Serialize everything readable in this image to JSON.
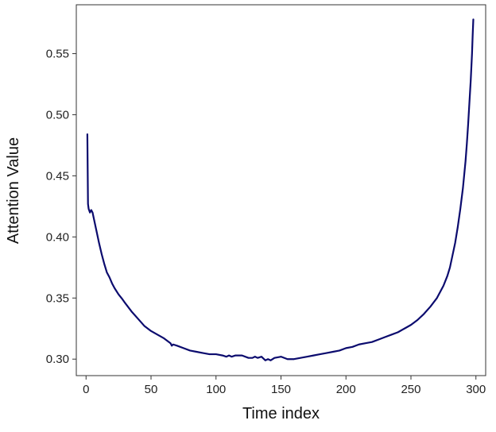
{
  "chart_data": {
    "type": "line",
    "title": "",
    "xlabel": "Time index",
    "ylabel": "Attention Value",
    "xlim": [
      -7.5,
      307.5
    ],
    "ylim": [
      0.2865,
      0.59
    ],
    "x_ticks": [
      0,
      50,
      100,
      150,
      200,
      250,
      300
    ],
    "y_ticks": [
      0.3,
      0.35,
      0.4,
      0.45,
      0.5,
      0.55
    ],
    "x_tick_labels": [
      "0",
      "50",
      "100",
      "150",
      "200",
      "250",
      "300"
    ],
    "y_tick_labels": [
      "0.30",
      "0.35",
      "0.40",
      "0.45",
      "0.50",
      "0.55"
    ],
    "grid": false,
    "legend": "none",
    "line_color": "#0b0b6e",
    "series": [
      {
        "x": [
          1,
          1.5,
          2,
          3,
          4,
          5,
          6,
          7,
          8,
          10,
          12,
          14,
          16,
          18,
          20,
          22,
          25,
          28,
          30,
          35,
          40,
          45,
          50,
          55,
          60,
          65,
          66,
          67,
          70,
          75,
          80,
          85,
          90,
          95,
          100,
          105,
          108,
          110,
          112,
          115,
          120,
          125,
          128,
          130,
          132,
          135,
          138,
          140,
          142,
          145,
          150,
          155,
          160,
          165,
          170,
          175,
          180,
          185,
          190,
          195,
          200,
          205,
          210,
          215,
          220,
          225,
          230,
          235,
          240,
          245,
          250,
          255,
          260,
          265,
          270,
          275,
          278,
          280,
          282,
          284,
          286,
          288,
          290,
          292,
          293,
          294,
          295,
          296,
          297,
          297.5,
          298
        ],
        "y": [
          0.484,
          0.427,
          0.423,
          0.42,
          0.422,
          0.42,
          0.415,
          0.41,
          0.405,
          0.395,
          0.386,
          0.378,
          0.371,
          0.367,
          0.362,
          0.358,
          0.353,
          0.349,
          0.346,
          0.339,
          0.333,
          0.327,
          0.323,
          0.32,
          0.317,
          0.313,
          0.311,
          0.312,
          0.311,
          0.309,
          0.307,
          0.306,
          0.305,
          0.304,
          0.304,
          0.303,
          0.302,
          0.303,
          0.302,
          0.303,
          0.303,
          0.301,
          0.301,
          0.302,
          0.301,
          0.302,
          0.299,
          0.3,
          0.299,
          0.301,
          0.302,
          0.3,
          0.3,
          0.301,
          0.302,
          0.303,
          0.304,
          0.305,
          0.306,
          0.307,
          0.309,
          0.31,
          0.312,
          0.313,
          0.314,
          0.316,
          0.318,
          0.32,
          0.322,
          0.325,
          0.328,
          0.332,
          0.337,
          0.343,
          0.35,
          0.36,
          0.368,
          0.375,
          0.385,
          0.395,
          0.408,
          0.423,
          0.44,
          0.462,
          0.476,
          0.492,
          0.51,
          0.528,
          0.55,
          0.565,
          0.578
        ]
      }
    ]
  }
}
